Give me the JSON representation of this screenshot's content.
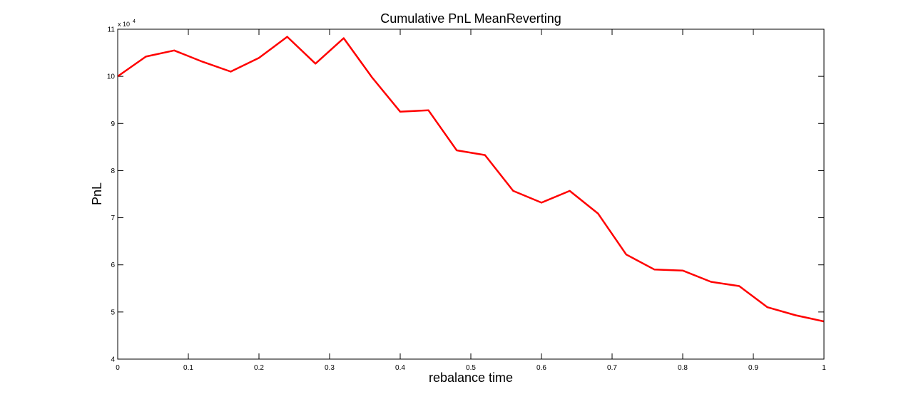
{
  "chart_data": {
    "type": "line",
    "title": "Cumulative PnL MeanReverting",
    "xlabel": "rebalance time",
    "ylabel": "PnL",
    "y_exponent_label": "x 10",
    "y_exponent_power": "4",
    "xlim": [
      0,
      1
    ],
    "ylim": [
      4,
      11
    ],
    "xticks": [
      0,
      0.1,
      0.2,
      0.3,
      0.4,
      0.5,
      0.6,
      0.7,
      0.8,
      0.9,
      1
    ],
    "xtick_labels": [
      "0",
      "0.1",
      "0.2",
      "0.3",
      "0.4",
      "0.5",
      "0.6",
      "0.7",
      "0.8",
      "0.9",
      "1"
    ],
    "yticks": [
      4,
      5,
      6,
      7,
      8,
      9,
      10,
      11
    ],
    "ytick_labels": [
      "4",
      "5",
      "6",
      "7",
      "8",
      "9",
      "10",
      "11"
    ],
    "grid": false,
    "series": [
      {
        "color": "#ff0000",
        "x": [
          0,
          0.04,
          0.08,
          0.12,
          0.16,
          0.2,
          0.24,
          0.28,
          0.32,
          0.36,
          0.4,
          0.44,
          0.48,
          0.52,
          0.56,
          0.6,
          0.64,
          0.68,
          0.72,
          0.76,
          0.8,
          0.84,
          0.88,
          0.92,
          0.96,
          1.0
        ],
        "values": [
          10.0,
          10.42,
          10.55,
          10.31,
          10.1,
          10.39,
          10.84,
          10.27,
          10.81,
          9.98,
          9.25,
          9.28,
          8.43,
          8.33,
          7.57,
          7.32,
          7.57,
          7.09,
          6.22,
          5.9,
          5.88,
          5.64,
          5.55,
          5.1,
          4.93,
          4.8
        ]
      }
    ]
  }
}
